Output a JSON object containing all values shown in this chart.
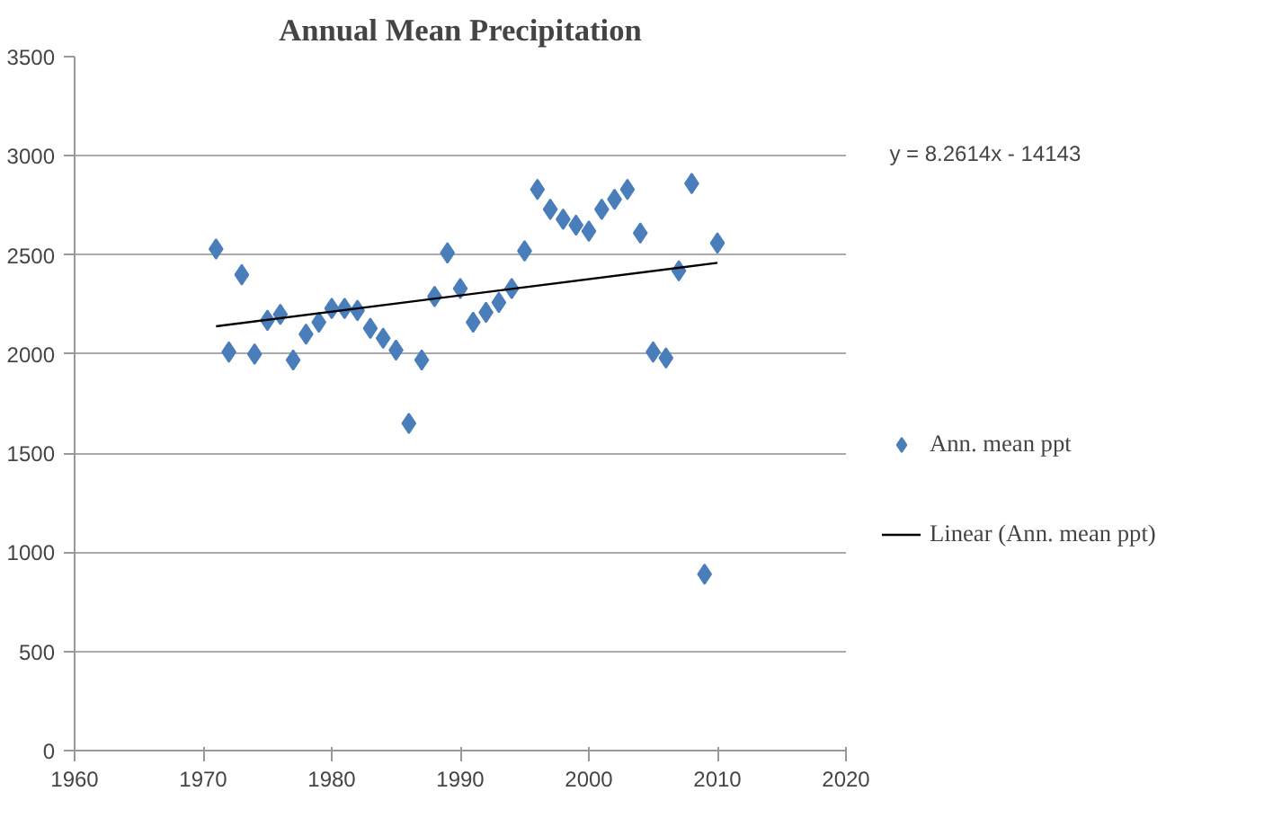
{
  "chart_data": {
    "type": "scatter",
    "title": "Annual Mean Precipitation",
    "x": [
      1971,
      1972,
      1973,
      1974,
      1975,
      1976,
      1977,
      1978,
      1979,
      1980,
      1981,
      1982,
      1983,
      1984,
      1985,
      1986,
      1987,
      1988,
      1989,
      1990,
      1991,
      1992,
      1993,
      1994,
      1995,
      1996,
      1997,
      1998,
      1999,
      2000,
      2001,
      2002,
      2003,
      2004,
      2005,
      2006,
      2007,
      2008,
      2009,
      2010
    ],
    "series": [
      {
        "name": "Ann. mean ppt",
        "color": "#4a7ebb",
        "marker": "diamond",
        "values": [
          2530,
          2010,
          2400,
          2000,
          2170,
          2200,
          1970,
          2100,
          2160,
          2230,
          2230,
          2220,
          2130,
          2080,
          2020,
          1650,
          1970,
          2290,
          2510,
          2330,
          2160,
          2210,
          2260,
          2330,
          2520,
          2830,
          2730,
          2680,
          2650,
          2620,
          2730,
          2780,
          2830,
          2610,
          2010,
          1980,
          2420,
          2860,
          890,
          2560
        ]
      },
      {
        "name": "Linear (Ann. mean ppt)",
        "type": "line",
        "color": "#000000",
        "marker": "none",
        "x": [
          1971,
          2010
        ],
        "values": [
          2140,
          2460
        ]
      }
    ],
    "annotations": [
      "y = 8.2614x - 14143"
    ],
    "xlim": [
      1960,
      2020
    ],
    "xticks": [
      1960,
      1970,
      1980,
      1990,
      2000,
      2010,
      2020
    ],
    "ylim": [
      0,
      3500
    ],
    "yticks": [
      0,
      500,
      1000,
      1500,
      2000,
      2500,
      3000,
      3500
    ],
    "grid": "y",
    "legend": "right"
  }
}
